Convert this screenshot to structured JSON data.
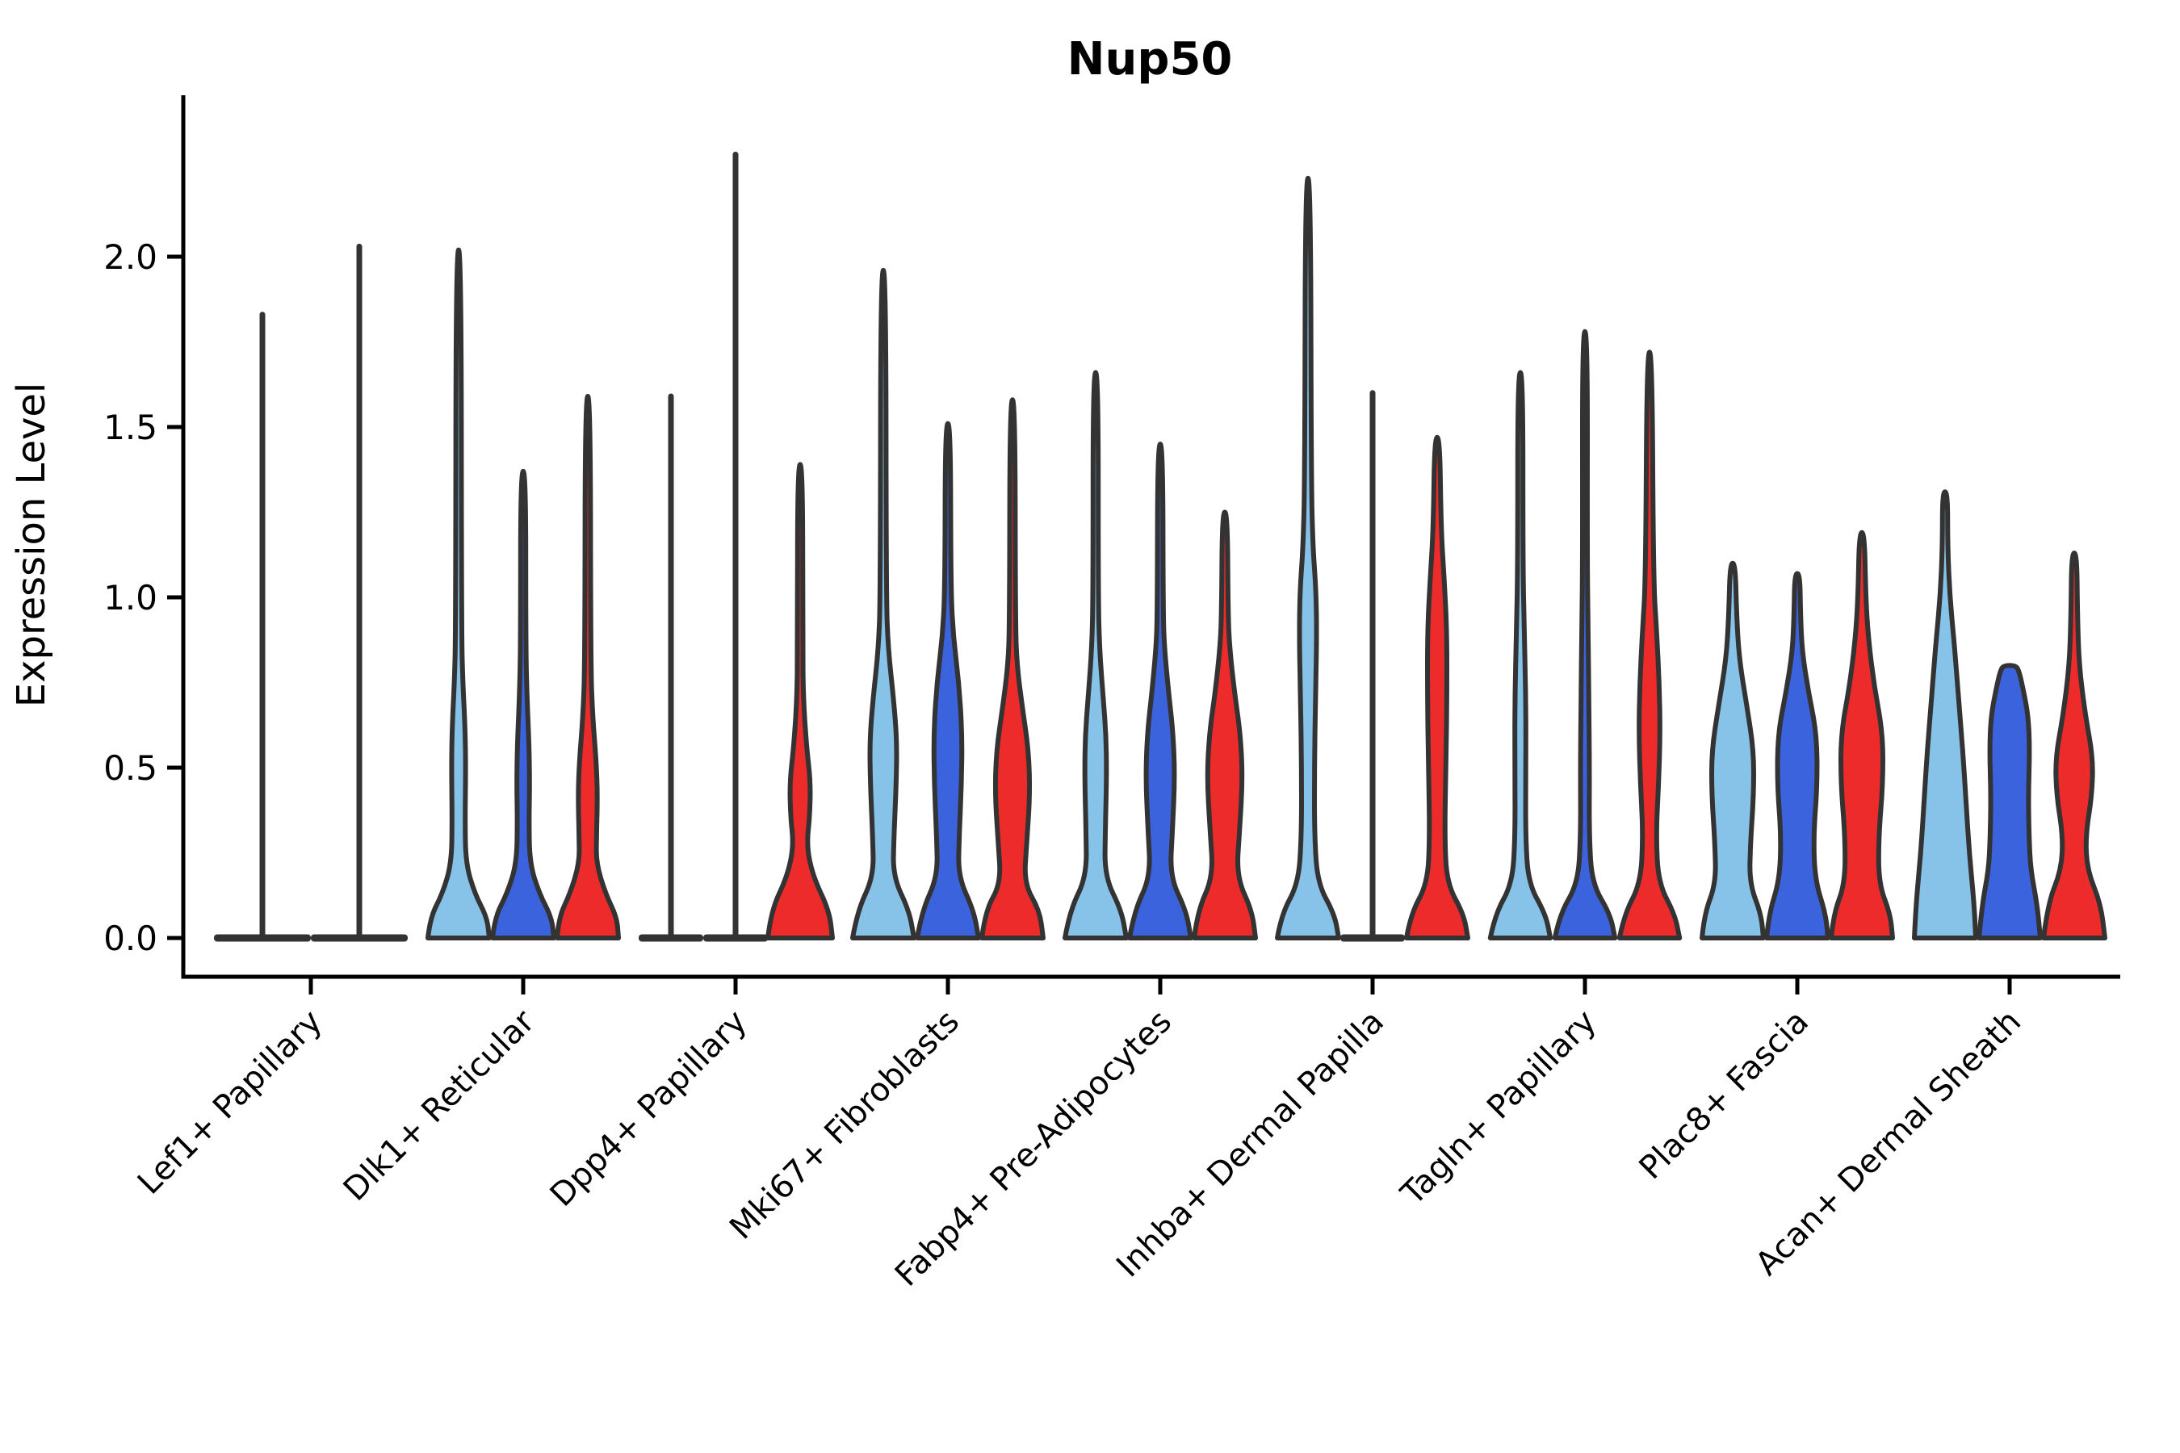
{
  "title": "Nup50",
  "ylabel": "Expression Level",
  "yticks": [
    {
      "label": "0.0",
      "value": 0.0
    },
    {
      "label": "0.5",
      "value": 0.5
    },
    {
      "label": "1.0",
      "value": 1.0
    },
    {
      "label": "1.5",
      "value": 1.5
    },
    {
      "label": "2.0",
      "value": 2.0
    }
  ],
  "colors": {
    "light_blue": "#87C3E8",
    "dark_blue": "#3C63DE",
    "red": "#EE2B2B",
    "outline": "#333333",
    "axis": "#000000"
  },
  "chart_data": {
    "type": "violin",
    "title": "Nup50",
    "ylabel": "Expression Level",
    "xlabel": "",
    "ylim": [
      -0.08,
      2.38
    ],
    "grid": false,
    "legend": "none",
    "series_colors": [
      "light_blue",
      "dark_blue",
      "red"
    ],
    "categories": [
      "Lef1+ Papillary",
      "Dlk1+ Reticular",
      "Dpp4+ Papillary",
      "Mki67+ Fibroblasts",
      "Fabp4+ Pre-Adipocytes",
      "Inhba+ Dermal Papilla",
      "Tagln+ Papillary",
      "Plac8+ Fascia",
      "Acan+ Dermal Sheath"
    ],
    "groups": [
      {
        "category": "Lef1+ Papillary",
        "violins": [
          {
            "slot": -0.75,
            "color": null,
            "flat": true,
            "base_hw": 1.5,
            "max": 1.83
          },
          {
            "slot": 0.75,
            "color": null,
            "flat": true,
            "base_hw": 1.5,
            "max": 2.03
          }
        ]
      },
      {
        "category": "Dlk1+ Reticular",
        "violins": [
          {
            "slot": -1,
            "color": "light_blue",
            "max": 2.02,
            "profile": [
              [
                0,
                0.95
              ],
              [
                0.06,
                0.88
              ],
              [
                0.13,
                0.5
              ],
              [
                0.22,
                0.22
              ],
              [
                0.35,
                0.2
              ],
              [
                0.5,
                0.22
              ],
              [
                0.62,
                0.2
              ],
              [
                0.75,
                0.13
              ],
              [
                0.9,
                0.09
              ]
            ]
          },
          {
            "slot": 0,
            "color": "dark_blue",
            "max": 1.37,
            "profile": [
              [
                0,
                0.95
              ],
              [
                0.06,
                0.88
              ],
              [
                0.13,
                0.5
              ],
              [
                0.22,
                0.2
              ],
              [
                0.35,
                0.18
              ],
              [
                0.45,
                0.2
              ],
              [
                0.57,
                0.18
              ],
              [
                0.7,
                0.12
              ],
              [
                0.85,
                0.08
              ]
            ]
          },
          {
            "slot": 1,
            "color": "red",
            "max": 1.59,
            "profile": [
              [
                0,
                0.95
              ],
              [
                0.06,
                0.9
              ],
              [
                0.13,
                0.55
              ],
              [
                0.22,
                0.26
              ],
              [
                0.3,
                0.27
              ],
              [
                0.42,
                0.3
              ],
              [
                0.52,
                0.26
              ],
              [
                0.65,
                0.15
              ],
              [
                0.8,
                0.09
              ]
            ]
          }
        ]
      },
      {
        "category": "Dpp4+ Papillary",
        "violins": [
          {
            "slot": -1,
            "color": null,
            "flat": true,
            "base_hw": 1.0,
            "max": 1.59
          },
          {
            "slot": 0,
            "color": null,
            "flat": true,
            "base_hw": 1.0,
            "max": 2.3
          },
          {
            "slot": 1,
            "color": "red",
            "max": 1.39,
            "profile": [
              [
                0,
                1.0
              ],
              [
                0.08,
                0.9
              ],
              [
                0.18,
                0.4
              ],
              [
                0.27,
                0.2
              ],
              [
                0.36,
                0.3
              ],
              [
                0.46,
                0.32
              ],
              [
                0.56,
                0.2
              ],
              [
                0.7,
                0.1
              ],
              [
                0.85,
                0.08
              ]
            ]
          }
        ]
      },
      {
        "category": "Mki67+ Fibroblasts",
        "violins": [
          {
            "slot": -1,
            "color": "light_blue",
            "max": 1.96,
            "profile": [
              [
                0,
                0.95
              ],
              [
                0.08,
                0.8
              ],
              [
                0.18,
                0.3
              ],
              [
                0.3,
                0.33
              ],
              [
                0.45,
                0.4
              ],
              [
                0.58,
                0.42
              ],
              [
                0.7,
                0.32
              ],
              [
                0.85,
                0.15
              ],
              [
                1.0,
                0.09
              ]
            ]
          },
          {
            "slot": 0,
            "color": "dark_blue",
            "max": 1.51,
            "profile": [
              [
                0,
                0.95
              ],
              [
                0.08,
                0.8
              ],
              [
                0.18,
                0.32
              ],
              [
                0.3,
                0.35
              ],
              [
                0.45,
                0.42
              ],
              [
                0.6,
                0.44
              ],
              [
                0.75,
                0.34
              ],
              [
                0.9,
                0.15
              ],
              [
                1.05,
                0.09
              ]
            ]
          },
          {
            "slot": 1,
            "color": "red",
            "max": 1.58,
            "profile": [
              [
                0,
                0.95
              ],
              [
                0.08,
                0.84
              ],
              [
                0.16,
                0.36
              ],
              [
                0.28,
                0.44
              ],
              [
                0.42,
                0.54
              ],
              [
                0.55,
                0.5
              ],
              [
                0.68,
                0.3
              ],
              [
                0.8,
                0.14
              ],
              [
                0.92,
                0.09
              ]
            ]
          }
        ]
      },
      {
        "category": "Fabp4+ Pre-Adipocytes",
        "violins": [
          {
            "slot": -1,
            "color": "light_blue",
            "max": 1.66,
            "profile": [
              [
                0,
                0.95
              ],
              [
                0.08,
                0.8
              ],
              [
                0.18,
                0.28
              ],
              [
                0.32,
                0.3
              ],
              [
                0.48,
                0.34
              ],
              [
                0.6,
                0.32
              ],
              [
                0.72,
                0.22
              ],
              [
                0.85,
                0.12
              ],
              [
                1.0,
                0.08
              ]
            ]
          },
          {
            "slot": 0,
            "color": "dark_blue",
            "max": 1.45,
            "profile": [
              [
                0,
                0.95
              ],
              [
                0.08,
                0.8
              ],
              [
                0.18,
                0.3
              ],
              [
                0.32,
                0.38
              ],
              [
                0.47,
                0.45
              ],
              [
                0.6,
                0.4
              ],
              [
                0.72,
                0.26
              ],
              [
                0.85,
                0.13
              ],
              [
                0.95,
                0.09
              ]
            ]
          },
          {
            "slot": 1,
            "color": "red",
            "max": 1.25,
            "profile": [
              [
                0,
                0.95
              ],
              [
                0.08,
                0.84
              ],
              [
                0.18,
                0.36
              ],
              [
                0.32,
                0.46
              ],
              [
                0.47,
                0.55
              ],
              [
                0.6,
                0.48
              ],
              [
                0.72,
                0.3
              ],
              [
                0.85,
                0.15
              ],
              [
                0.95,
                0.1
              ]
            ]
          }
        ]
      },
      {
        "category": "Inhba+ Dermal Papilla",
        "violins": [
          {
            "slot": -1,
            "color": "light_blue",
            "max": 2.23,
            "profile": [
              [
                0,
                0.95
              ],
              [
                0.07,
                0.82
              ],
              [
                0.16,
                0.3
              ],
              [
                0.3,
                0.2
              ],
              [
                0.5,
                0.2
              ],
              [
                0.7,
                0.23
              ],
              [
                0.88,
                0.27
              ],
              [
                1.02,
                0.25
              ],
              [
                1.15,
                0.15
              ],
              [
                1.35,
                0.1
              ]
            ]
          },
          {
            "slot": 0,
            "color": null,
            "flat": true,
            "base_hw": 1.0,
            "max": 1.6
          },
          {
            "slot": 1,
            "color": "red",
            "max": 1.47,
            "profile": [
              [
                0,
                0.95
              ],
              [
                0.07,
                0.82
              ],
              [
                0.16,
                0.3
              ],
              [
                0.3,
                0.23
              ],
              [
                0.5,
                0.27
              ],
              [
                0.7,
                0.3
              ],
              [
                0.9,
                0.3
              ],
              [
                1.05,
                0.22
              ],
              [
                1.2,
                0.12
              ]
            ]
          }
        ]
      },
      {
        "category": "Tagln+ Papillary",
        "violins": [
          {
            "slot": -1,
            "color": "light_blue",
            "max": 1.66,
            "profile": [
              [
                0,
                0.93
              ],
              [
                0.07,
                0.78
              ],
              [
                0.16,
                0.25
              ],
              [
                0.3,
                0.16
              ],
              [
                0.5,
                0.17
              ],
              [
                0.7,
                0.17
              ],
              [
                0.9,
                0.12
              ],
              [
                1.1,
                0.08
              ]
            ]
          },
          {
            "slot": 0,
            "color": "dark_blue",
            "max": 1.78,
            "profile": [
              [
                0,
                0.93
              ],
              [
                0.07,
                0.78
              ],
              [
                0.16,
                0.22
              ],
              [
                0.3,
                0.13
              ],
              [
                0.5,
                0.14
              ],
              [
                0.7,
                0.12
              ],
              [
                0.9,
                0.1
              ],
              [
                1.1,
                0.07
              ]
            ]
          },
          {
            "slot": 1,
            "color": "red",
            "max": 1.72,
            "profile": [
              [
                0,
                0.93
              ],
              [
                0.07,
                0.78
              ],
              [
                0.16,
                0.28
              ],
              [
                0.3,
                0.2
              ],
              [
                0.45,
                0.28
              ],
              [
                0.6,
                0.33
              ],
              [
                0.75,
                0.3
              ],
              [
                0.9,
                0.22
              ],
              [
                1.05,
                0.12
              ]
            ]
          }
        ]
      },
      {
        "category": "Plac8+ Fascia",
        "violins": [
          {
            "slot": -1,
            "color": "light_blue",
            "max": 1.1,
            "profile": [
              [
                0,
                0.95
              ],
              [
                0.07,
                0.88
              ],
              [
                0.16,
                0.52
              ],
              [
                0.28,
                0.55
              ],
              [
                0.42,
                0.65
              ],
              [
                0.55,
                0.65
              ],
              [
                0.68,
                0.44
              ],
              [
                0.82,
                0.2
              ],
              [
                0.95,
                0.12
              ]
            ]
          },
          {
            "slot": 0,
            "color": "dark_blue",
            "max": 1.07,
            "profile": [
              [
                0,
                0.95
              ],
              [
                0.07,
                0.88
              ],
              [
                0.17,
                0.55
              ],
              [
                0.3,
                0.5
              ],
              [
                0.45,
                0.62
              ],
              [
                0.6,
                0.6
              ],
              [
                0.72,
                0.35
              ],
              [
                0.84,
                0.15
              ],
              [
                0.95,
                0.1
              ]
            ]
          },
          {
            "slot": 1,
            "color": "red",
            "max": 1.19,
            "profile": [
              [
                0,
                0.95
              ],
              [
                0.07,
                0.88
              ],
              [
                0.16,
                0.52
              ],
              [
                0.3,
                0.52
              ],
              [
                0.45,
                0.65
              ],
              [
                0.6,
                0.65
              ],
              [
                0.74,
                0.38
              ],
              [
                0.88,
                0.2
              ],
              [
                1.0,
                0.12
              ]
            ]
          }
        ]
      },
      {
        "category": "Acan+ Dermal Sheath",
        "violins": [
          {
            "slot": -1,
            "color": "light_blue",
            "max": 1.31,
            "profile": [
              [
                0,
                0.95
              ],
              [
                0.1,
                0.9
              ],
              [
                0.25,
                0.75
              ],
              [
                0.4,
                0.65
              ],
              [
                0.55,
                0.55
              ],
              [
                0.7,
                0.42
              ],
              [
                0.85,
                0.3
              ],
              [
                1.0,
                0.15
              ],
              [
                1.15,
                0.08
              ]
            ]
          },
          {
            "slot": 0,
            "color": "dark_blue",
            "max": 0.8,
            "tip": 0.2,
            "profile": [
              [
                0,
                0.95
              ],
              [
                0.1,
                0.85
              ],
              [
                0.2,
                0.65
              ],
              [
                0.3,
                0.6
              ],
              [
                0.42,
                0.58
              ],
              [
                0.55,
                0.62
              ],
              [
                0.65,
                0.58
              ],
              [
                0.73,
                0.42
              ],
              [
                0.78,
                0.3
              ]
            ]
          },
          {
            "slot": 1,
            "color": "red",
            "max": 1.13,
            "profile": [
              [
                0,
                0.95
              ],
              [
                0.1,
                0.82
              ],
              [
                0.2,
                0.4
              ],
              [
                0.3,
                0.35
              ],
              [
                0.42,
                0.55
              ],
              [
                0.53,
                0.58
              ],
              [
                0.65,
                0.35
              ],
              [
                0.8,
                0.15
              ],
              [
                0.95,
                0.1
              ]
            ]
          }
        ]
      }
    ]
  }
}
